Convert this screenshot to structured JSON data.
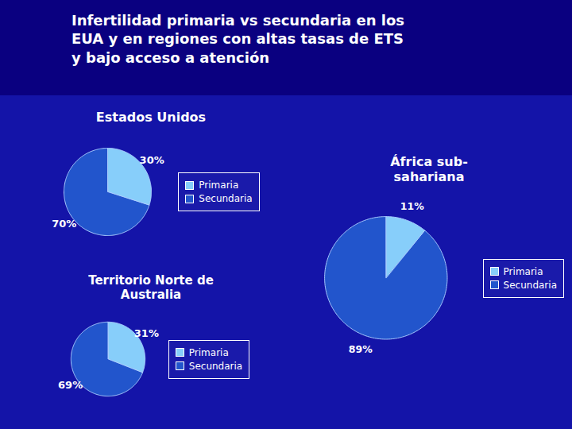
{
  "title": "Infertilidad primaria vs secundaria en los\nEUA y en regiones con altas tasas de ETS\ny bajo acceso a atención",
  "chart_data": [
    {
      "type": "pie",
      "title": "Estados Unidos",
      "categories": [
        "Primaria",
        "Secundaria"
      ],
      "values": [
        30,
        70
      ],
      "value_labels": [
        "30%",
        "70%"
      ],
      "colors": [
        "#87CEFA",
        "#2255CC"
      ],
      "data_labels": true,
      "legend": "right"
    },
    {
      "type": "pie",
      "title": "África sub-\nsahariana",
      "categories": [
        "Primaria",
        "Secundaria"
      ],
      "values": [
        11,
        89
      ],
      "value_labels": [
        "11%",
        "89%"
      ],
      "colors": [
        "#87CEFA",
        "#2255CC"
      ],
      "data_labels": true,
      "legend": "right"
    },
    {
      "type": "pie",
      "title": "Territorio Norte de\nAustralia",
      "categories": [
        "Primaria",
        "Secundaria"
      ],
      "values": [
        31,
        69
      ],
      "value_labels": [
        "31%",
        "69%"
      ],
      "colors": [
        "#87CEFA",
        "#2255CC"
      ],
      "data_labels": true,
      "legend": "right"
    }
  ]
}
